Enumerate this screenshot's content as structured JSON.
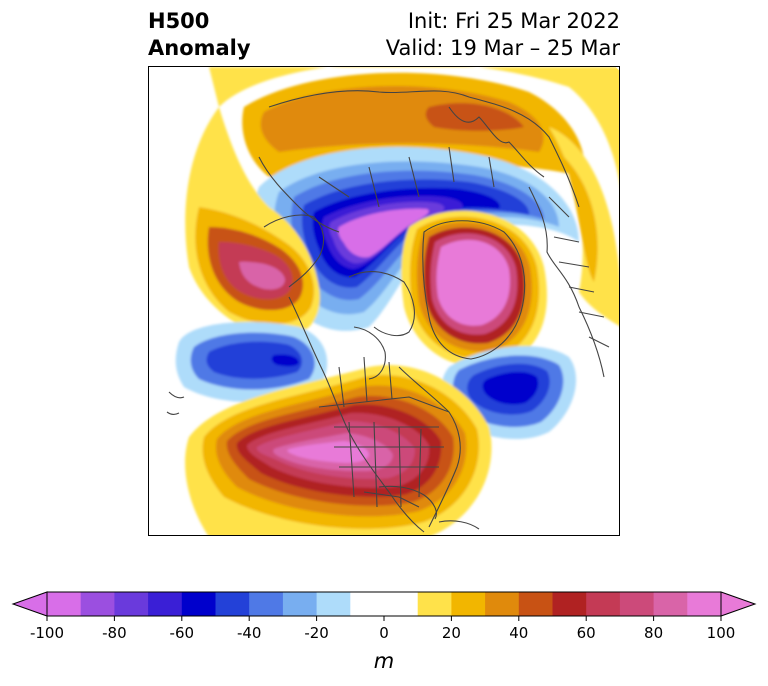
{
  "title": {
    "left_line1": "H500",
    "left_line2": "Anomaly",
    "right_line1": "Init: Fri 25 Mar 2022",
    "right_line2": "Valid: 19 Mar – 25 Mar"
  },
  "colorbar": {
    "unit_label": "m",
    "ticks": [
      "-100",
      "-80",
      "-60",
      "-40",
      "-20",
      "0",
      "20",
      "40",
      "60",
      "80",
      "100"
    ],
    "bins": [
      {
        "from": -100,
        "to": -90,
        "color": "#d86ee8"
      },
      {
        "from": -90,
        "to": -80,
        "color": "#9b4fe0"
      },
      {
        "from": -80,
        "to": -70,
        "color": "#6a3adc"
      },
      {
        "from": -70,
        "to": -60,
        "color": "#3a1fd6"
      },
      {
        "from": -60,
        "to": -50,
        "color": "#0000cc"
      },
      {
        "from": -50,
        "to": -40,
        "color": "#2341d8"
      },
      {
        "from": -40,
        "to": -30,
        "color": "#4f79e6"
      },
      {
        "from": -30,
        "to": -20,
        "color": "#78aef0"
      },
      {
        "from": -20,
        "to": -10,
        "color": "#aedcfa"
      },
      {
        "from": -10,
        "to": 10,
        "color": "#ffffff"
      },
      {
        "from": 10,
        "to": 20,
        "color": "#ffe24a"
      },
      {
        "from": 20,
        "to": 30,
        "color": "#f2b600"
      },
      {
        "from": 30,
        "to": 40,
        "color": "#e08a0c"
      },
      {
        "from": 40,
        "to": 50,
        "color": "#c85214"
      },
      {
        "from": 50,
        "to": 60,
        "color": "#b02222"
      },
      {
        "from": 60,
        "to": 70,
        "color": "#c43a55"
      },
      {
        "from": 70,
        "to": 80,
        "color": "#cc4a7a"
      },
      {
        "from": 80,
        "to": 90,
        "color": "#d964a8"
      },
      {
        "from": 90,
        "to": 100,
        "color": "#e87ad8"
      }
    ],
    "extend_low_color": "#d86ee8",
    "extend_high_color": "#e87ad8"
  }
}
